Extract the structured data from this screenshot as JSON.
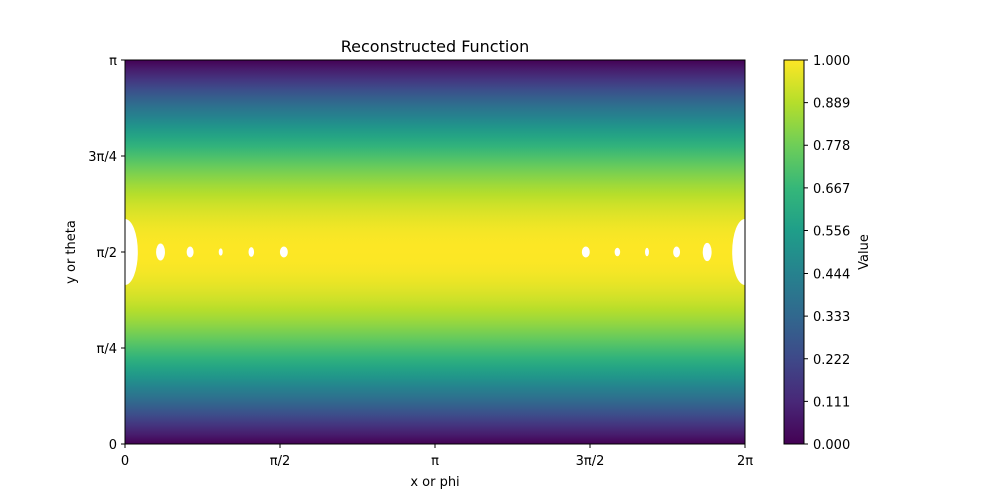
{
  "chart_data": {
    "type": "heatmap",
    "title": "Reconstructed Function",
    "xlabel": "x or phi",
    "ylabel": "y or theta",
    "xlim": [
      0,
      6.2832
    ],
    "ylim": [
      0,
      3.1416
    ],
    "x_ticks": [
      {
        "value": 0,
        "label": "0"
      },
      {
        "value": 1.5708,
        "label": "π/2"
      },
      {
        "value": 3.1416,
        "label": "π"
      },
      {
        "value": 4.7124,
        "label": "3π/2"
      },
      {
        "value": 6.2832,
        "label": "2π"
      }
    ],
    "y_ticks": [
      {
        "value": 0,
        "label": "0"
      },
      {
        "value": 0.7854,
        "label": "π/4"
      },
      {
        "value": 1.5708,
        "label": "π/2"
      },
      {
        "value": 2.3562,
        "label": "3π/4"
      },
      {
        "value": 3.1416,
        "label": "π"
      }
    ],
    "function": "approximately sin(y), constant along x; peaks at 1.0 at y = π/2 and falls to 0 at y = 0 and y = π",
    "colormap": "viridis",
    "colormap_stops": [
      "#440154",
      "#482878",
      "#3e4989",
      "#31688e",
      "#26828e",
      "#1f9e89",
      "#35b779",
      "#6ece58",
      "#b5de2b",
      "#fde725"
    ],
    "colorbar": {
      "label": "Value",
      "range": [
        0,
        1
      ],
      "ticks": [
        "0.000",
        "0.111",
        "0.222",
        "0.333",
        "0.444",
        "0.556",
        "0.667",
        "0.778",
        "0.889",
        "1.000"
      ]
    },
    "masked_regions_note": "white gaps (values above 1.0) along y = π/2",
    "masked_regions": [
      {
        "x": 0.0,
        "y": 1.5708,
        "rx": 0.13,
        "ry": 0.27
      },
      {
        "x": 0.36,
        "y": 1.5708,
        "rx": 0.045,
        "ry": 0.07
      },
      {
        "x": 0.66,
        "y": 1.5708,
        "rx": 0.035,
        "ry": 0.045
      },
      {
        "x": 0.97,
        "y": 1.5708,
        "rx": 0.02,
        "ry": 0.03
      },
      {
        "x": 1.28,
        "y": 1.5708,
        "rx": 0.028,
        "ry": 0.04
      },
      {
        "x": 1.61,
        "y": 1.5708,
        "rx": 0.04,
        "ry": 0.045
      },
      {
        "x": 4.67,
        "y": 1.5708,
        "rx": 0.04,
        "ry": 0.045
      },
      {
        "x": 4.99,
        "y": 1.5708,
        "rx": 0.028,
        "ry": 0.035
      },
      {
        "x": 5.29,
        "y": 1.5708,
        "rx": 0.02,
        "ry": 0.035
      },
      {
        "x": 5.59,
        "y": 1.5708,
        "rx": 0.035,
        "ry": 0.045
      },
      {
        "x": 5.9,
        "y": 1.5708,
        "rx": 0.045,
        "ry": 0.075
      },
      {
        "x": 6.2832,
        "y": 1.5708,
        "rx": 0.13,
        "ry": 0.27
      }
    ]
  }
}
